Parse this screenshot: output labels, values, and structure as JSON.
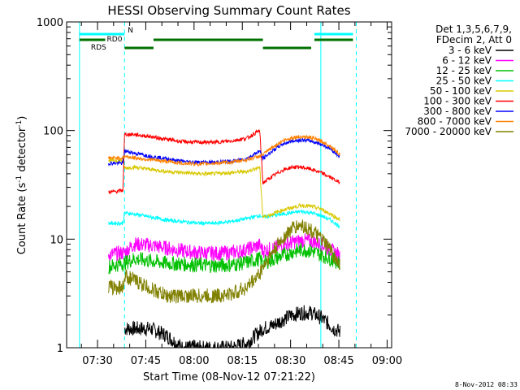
{
  "chart_data": {
    "type": "line",
    "title": "HESSI Observing Summary Count Rates",
    "xlabel": "Start Time (08-Nov-12 07:21:22)",
    "ylabel_main": "Count Rate (s",
    "ylabel_sup1": "-1",
    "ylabel_mid": " detector",
    "ylabel_sup2": "-1",
    "ylabel_end": ")",
    "yscale": "log",
    "ylim": [
      1,
      1000
    ],
    "xlim_minutes": [
      -1,
      100
    ],
    "x_ticks": [
      "07:30",
      "07:45",
      "08:00",
      "08:15",
      "08:30",
      "08:45",
      "09:00"
    ],
    "y_ticks": [
      "1",
      "10",
      "100",
      "1000"
    ],
    "legend_title_1": "Det 1,3,5,6,7,9,",
    "legend_title_2": "FDecim 2, Att 0",
    "legend_placement": "right",
    "footer": "8-Nov-2012 08:33",
    "flags": {
      "N": "N",
      "RD0": "RD0",
      "RDS": "RDS",
      "n_color": "#00ffff",
      "rd_color": "#007000",
      "n_segments": [
        [
          3,
          17
        ],
        [
          76,
          88
        ]
      ],
      "rd0_segments": [
        [
          3,
          11
        ],
        [
          26,
          60
        ],
        [
          76,
          88
        ]
      ],
      "rds_segments": [
        [
          17,
          26
        ],
        [
          60,
          75
        ]
      ],
      "vlines_solid": [
        3,
        78
      ],
      "vlines_dashed": [
        17,
        89
      ]
    },
    "series": [
      {
        "name": "3 - 6 keV",
        "color": "#000000",
        "x": [
          17,
          20,
          25,
          30,
          35,
          40,
          45,
          50,
          55,
          60,
          63,
          66,
          69,
          72,
          75,
          78,
          80,
          82,
          84
        ],
        "y": [
          1.5,
          1.5,
          1.5,
          1.3,
          1.0,
          1.0,
          1.0,
          1.0,
          1.1,
          1.5,
          1.6,
          1.8,
          2.0,
          2.1,
          2.1,
          1.9,
          1.7,
          1.5,
          1.4
        ]
      },
      {
        "name": "6 - 12 keV",
        "color": "#ff00ff",
        "x": [
          12,
          17,
          20,
          25,
          30,
          35,
          40,
          45,
          50,
          55,
          59,
          60,
          63,
          66,
          69,
          72,
          75,
          78,
          81,
          84
        ],
        "y": [
          7.2,
          7.5,
          9.0,
          8.8,
          8.3,
          7.8,
          7.5,
          7.4,
          7.5,
          8.0,
          8.8,
          7.8,
          8.2,
          8.8,
          9.3,
          9.7,
          9.6,
          9.0,
          8.0,
          7.0
        ]
      },
      {
        "name": "12 - 25 keV",
        "color": "#00c000",
        "x": [
          12,
          17,
          20,
          25,
          30,
          35,
          40,
          45,
          50,
          55,
          59,
          60,
          63,
          66,
          69,
          72,
          75,
          78,
          81,
          84
        ],
        "y": [
          5.6,
          6.0,
          6.6,
          6.3,
          6.0,
          5.9,
          5.8,
          5.7,
          5.8,
          6.1,
          6.6,
          6.0,
          6.5,
          7.0,
          7.6,
          8.0,
          7.8,
          7.2,
          6.6,
          6.0
        ]
      },
      {
        "name": "25 - 50 keV",
        "color": "#00ffff",
        "x": [
          12,
          16.5,
          17,
          20,
          25,
          30,
          35,
          40,
          45,
          50,
          55,
          59,
          60,
          63,
          66,
          69,
          72,
          75,
          78,
          81,
          84
        ],
        "y": [
          14,
          14,
          17.5,
          17,
          16,
          15,
          14.5,
          14,
          14,
          14.5,
          15.5,
          16.5,
          16,
          16.5,
          17,
          17.5,
          18,
          17.5,
          16.5,
          15,
          13
        ]
      },
      {
        "name": "50 - 100 keV",
        "color": "#d8c800",
        "x": [
          12,
          16.5,
          17,
          20,
          25,
          30,
          35,
          40,
          45,
          50,
          55,
          59,
          60,
          63,
          66,
          69,
          72,
          75,
          78,
          81,
          84
        ],
        "y": [
          53,
          53,
          45,
          46,
          44,
          42,
          41,
          40,
          40,
          41,
          42,
          46,
          16,
          17,
          18.5,
          19.5,
          20.5,
          20,
          19,
          17,
          15
        ]
      },
      {
        "name": "100 - 300 keV",
        "color": "#ff0000",
        "x": [
          12,
          16.5,
          17,
          20,
          25,
          30,
          35,
          40,
          45,
          50,
          55,
          59,
          60,
          63,
          66,
          69,
          72,
          75,
          78,
          81,
          84
        ],
        "y": [
          27,
          28,
          92,
          92,
          88,
          83,
          79,
          78,
          78,
          80,
          85,
          100,
          33,
          38,
          43,
          46,
          46,
          44,
          41,
          37,
          33
        ]
      },
      {
        "name": "300 - 800 keV",
        "color": "#0000ff",
        "x": [
          12,
          16.5,
          17,
          20,
          25,
          30,
          35,
          40,
          45,
          50,
          55,
          59,
          60,
          63,
          66,
          69,
          72,
          75,
          78,
          81,
          84
        ],
        "y": [
          50,
          50,
          65,
          62,
          58,
          55,
          52,
          51,
          51,
          52,
          55,
          65,
          55,
          65,
          75,
          80,
          82,
          80,
          75,
          68,
          57
        ]
      },
      {
        "name": "800 - 7000 keV",
        "color": "#ff8000",
        "x": [
          12,
          16.5,
          17,
          20,
          25,
          30,
          35,
          40,
          45,
          50,
          55,
          59,
          60,
          63,
          66,
          69,
          72,
          75,
          78,
          81,
          84
        ],
        "y": [
          56,
          56,
          58,
          56,
          54,
          52,
          50,
          49,
          50,
          51,
          54,
          58,
          60,
          70,
          80,
          86,
          88,
          86,
          80,
          72,
          60
        ]
      },
      {
        "name": "7000 - 20000 keV",
        "color": "#808000",
        "x": [
          12,
          16.5,
          17,
          20,
          25,
          30,
          35,
          40,
          45,
          50,
          55,
          59,
          60,
          63,
          66,
          69,
          72,
          75,
          78,
          81,
          84
        ],
        "y": [
          3.6,
          3.6,
          4.6,
          4.2,
          3.5,
          3.0,
          3.0,
          3.0,
          3.0,
          3.1,
          3.6,
          4.8,
          5.6,
          7.6,
          10,
          12.5,
          13.5,
          12,
          10,
          8,
          5.6
        ]
      }
    ]
  }
}
